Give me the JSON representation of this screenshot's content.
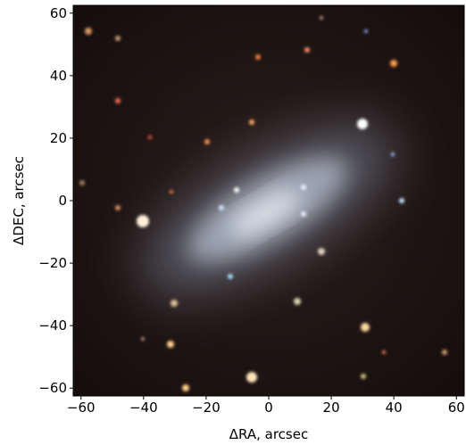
{
  "chart_data": {
    "type": "image",
    "xlabel": "ΔRA, arcsec",
    "ylabel": "ΔDEC, arcsec",
    "xlim": [
      -62.5,
      62.5
    ],
    "ylim": [
      -62.5,
      62.5
    ],
    "xticks": [
      {
        "value": -60,
        "label": "−60"
      },
      {
        "value": -40,
        "label": "−40"
      },
      {
        "value": -20,
        "label": "−20"
      },
      0,
      20,
      40,
      60
    ],
    "yticks": [
      {
        "value": -60,
        "label": "−60"
      },
      {
        "value": -40,
        "label": "−40"
      },
      {
        "value": -20,
        "label": "−20"
      },
      0,
      20,
      40,
      60
    ]
  }
}
